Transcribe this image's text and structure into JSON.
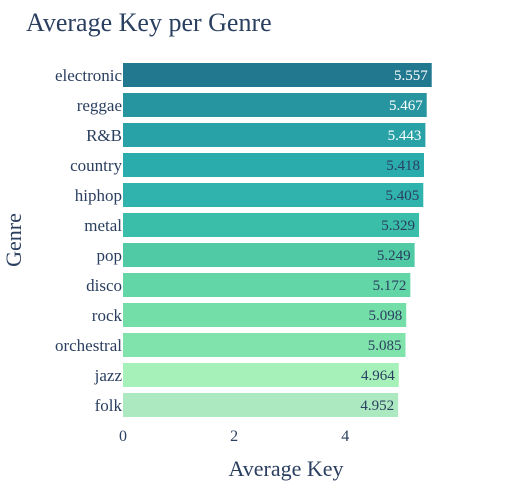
{
  "chart_data": {
    "type": "bar",
    "orientation": "horizontal",
    "title": "Average Key per Genre",
    "xlabel": "Average Key",
    "ylabel": "Genre",
    "categories": [
      "electronic",
      "reggae",
      "R&B",
      "country",
      "hiphop",
      "metal",
      "pop",
      "disco",
      "rock",
      "orchestral",
      "jazz",
      "folk"
    ],
    "values": [
      5.557,
      5.467,
      5.443,
      5.418,
      5.405,
      5.329,
      5.249,
      5.172,
      5.098,
      5.085,
      4.964,
      4.952
    ],
    "value_labels": [
      "5.557",
      "5.467",
      "5.443",
      "5.418",
      "5.405",
      "5.329",
      "5.249",
      "5.172",
      "5.098",
      "5.085",
      "4.964",
      "4.952"
    ],
    "bar_colors": [
      "#22798f",
      "#27959f",
      "#28a2a6",
      "#2aacac",
      "#30b2ad",
      "#3abda9",
      "#4fcaa4",
      "#62d6a6",
      "#74dea9",
      "#80e3ac",
      "#a6f1ba",
      "#ace9c0"
    ],
    "bar_label_colors": [
      "#ffffff",
      "#ffffff",
      "#ffffff",
      "#2a3f5f",
      "#2a3f5f",
      "#2a3f5f",
      "#2a3f5f",
      "#2a3f5f",
      "#2a3f5f",
      "#2a3f5f",
      "#2a3f5f",
      "#2a3f5f"
    ],
    "xticks": [
      0,
      2,
      4
    ],
    "xlim": [
      0,
      5.85
    ],
    "grid": false,
    "legend": false
  }
}
